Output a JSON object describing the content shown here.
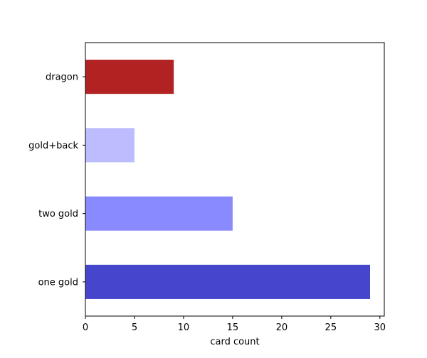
{
  "chart_data": {
    "type": "bar",
    "orientation": "horizontal",
    "categories": [
      "one gold",
      "two gold",
      "gold+back",
      "dragon"
    ],
    "values": [
      29,
      15,
      5,
      9
    ],
    "colors": [
      "#4646cd",
      "#8a8aff",
      "#bcbcff",
      "#b22222"
    ],
    "xlabel": "card count",
    "xlim": [
      0,
      30.45
    ],
    "xticks": [
      0,
      5,
      10,
      15,
      20,
      25,
      30
    ],
    "grid": false
  }
}
